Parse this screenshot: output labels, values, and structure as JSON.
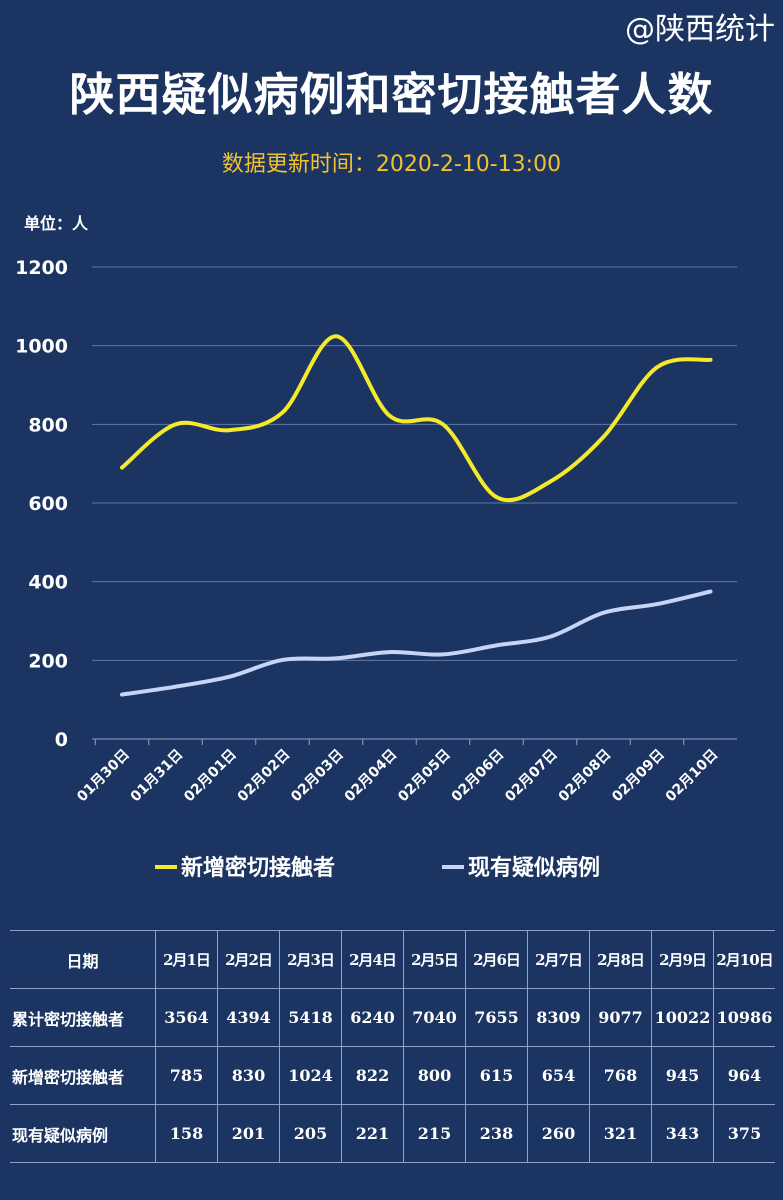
{
  "source": "@陕西统计",
  "title": "陕西疑似病例和密切接触者人数",
  "update_time": "数据更新时间：2020-2-10-13:00",
  "unit": "单位：人",
  "chart_data": {
    "type": "line",
    "title": "陕西疑似病例和密切接触者人数",
    "categories": [
      "01月30日",
      "01月31日",
      "02月01日",
      "02月02日",
      "02月03日",
      "02月04日",
      "02月05日",
      "02月06日",
      "02月07日",
      "02月08日",
      "02月09日",
      "02月10日"
    ],
    "ylim": [
      0,
      1200
    ],
    "yticks": [
      0,
      200,
      400,
      600,
      800,
      1000,
      1200
    ],
    "grid": true,
    "legend_position": "bottom",
    "smooth": true,
    "series": [
      {
        "name": "新增密切接触者",
        "color": "#f5ea2a",
        "values": [
          690,
          800,
          785,
          830,
          1024,
          822,
          800,
          615,
          654,
          768,
          945,
          964
        ]
      },
      {
        "name": "现有疑似病例",
        "color": "#c8d4f5",
        "values": [
          113,
          133,
          158,
          201,
          205,
          221,
          215,
          238,
          260,
          321,
          343,
          375
        ]
      }
    ]
  },
  "table": {
    "header": [
      "日期",
      "2月1日",
      "2月2日",
      "2月3日",
      "2月4日",
      "2月5日",
      "2月6日",
      "2月7日",
      "2月8日",
      "2月9日",
      "2月10日"
    ],
    "rows": [
      {
        "label": "累计密切接触者",
        "values": [
          "3564",
          "4394",
          "5418",
          "6240",
          "7040",
          "7655",
          "8309",
          "9077",
          "10022",
          "10986"
        ]
      },
      {
        "label": "新增密切接触者",
        "values": [
          "785",
          "830",
          "1024",
          "822",
          "800",
          "615",
          "654",
          "768",
          "945",
          "964"
        ]
      },
      {
        "label": "现有疑似病例",
        "values": [
          "158",
          "201",
          "205",
          "221",
          "215",
          "238",
          "260",
          "321",
          "343",
          "375"
        ]
      }
    ]
  }
}
